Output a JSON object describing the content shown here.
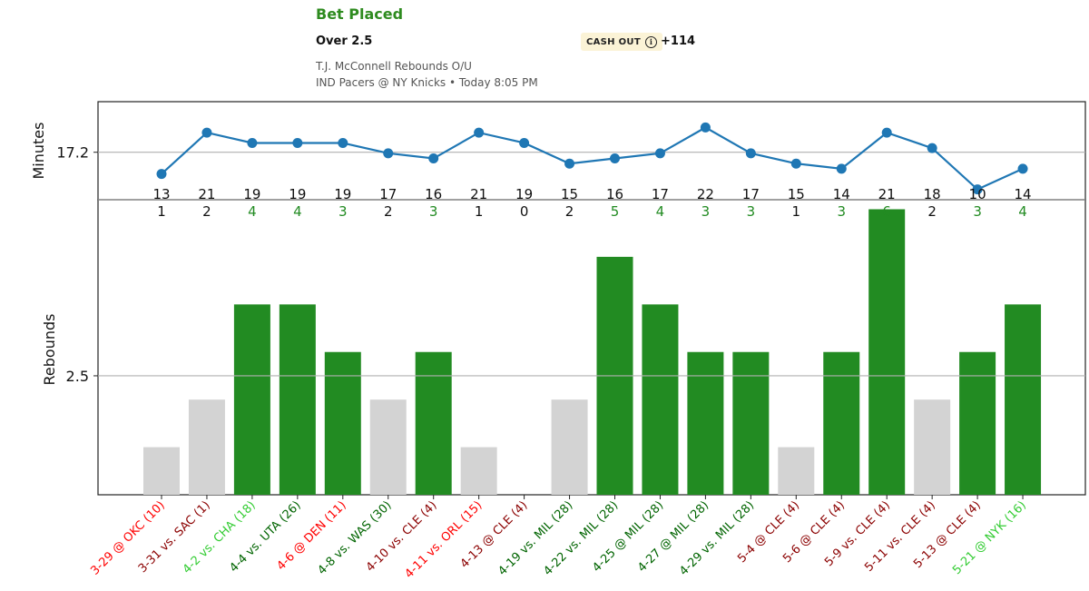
{
  "bet": {
    "title": "Bet Placed",
    "selection": "Over 2.5",
    "cashout_label": "CASH OUT",
    "cashout_icon": "info-icon",
    "odds": "+114",
    "market": "T.J. McConnell Rebounds O/U",
    "event": "IND Pacers @ NY Knicks • Today 8:05 PM"
  },
  "colors": {
    "over": "#228b22",
    "under": "#d3d3d3",
    "line_series": "#1f77b4",
    "label_win_recent": "#33cc33",
    "label_win": "#006400",
    "label_loss_recent": "#ff0000",
    "label_loss": "#8b0000",
    "reference_line": "#b0b0b0"
  },
  "chart_data": [
    {
      "type": "line",
      "ylabel": "Minutes",
      "reference_line": 17.2,
      "yticks": [
        "17.2"
      ],
      "ylim": [
        8,
        27
      ],
      "values": [
        13,
        21,
        19,
        19,
        19,
        17,
        16,
        21,
        19,
        15,
        16,
        17,
        22,
        17,
        15,
        14,
        21,
        18,
        10,
        14
      ]
    },
    {
      "type": "bar",
      "ylabel": "Rebounds",
      "reference_line": 2.5,
      "yticks": [
        "2.5"
      ],
      "ylim": [
        0,
        6.2
      ],
      "categories": [
        "3-29 @ OKC (10)",
        "3-31 vs. SAC (1)",
        "4-2 vs. CHA (18)",
        "4-4 vs. UTA (26)",
        "4-6 @ DEN (11)",
        "4-8 vs. WAS (30)",
        "4-10 vs. CLE (4)",
        "4-11 vs. ORL (15)",
        "4-13 @ CLE (4)",
        "4-19 vs. MIL (28)",
        "4-22 vs. MIL (28)",
        "4-25 @ MIL (28)",
        "4-27 @ MIL (28)",
        "4-29 vs. MIL (28)",
        "5-4 @ CLE (4)",
        "5-6 @ CLE (4)",
        "5-9 vs. CLE (4)",
        "5-11 vs. CLE (4)",
        "5-13 @ CLE (4)",
        "5-21 @ NYK (16)"
      ],
      "values": [
        1,
        2,
        4,
        4,
        3,
        2,
        3,
        1,
        0,
        2,
        5,
        4,
        3,
        3,
        1,
        3,
        6,
        2,
        3,
        4
      ],
      "category_colors": [
        "#ff0000",
        "#8b0000",
        "#33cc33",
        "#006400",
        "#ff0000",
        "#006400",
        "#8b0000",
        "#ff0000",
        "#8b0000",
        "#006400",
        "#006400",
        "#006400",
        "#006400",
        "#006400",
        "#8b0000",
        "#8b0000",
        "#8b0000",
        "#8b0000",
        "#8b0000",
        "#33cc33"
      ]
    }
  ]
}
